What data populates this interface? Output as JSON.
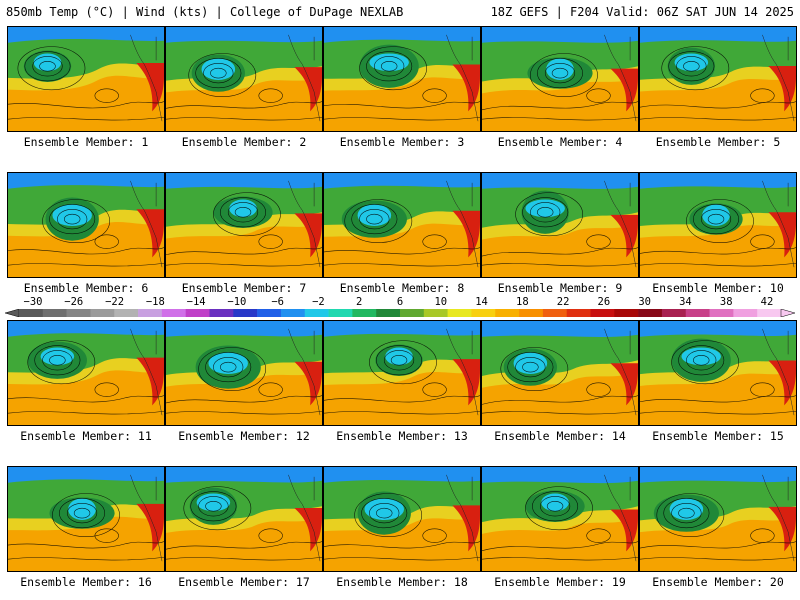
{
  "header": {
    "title": "850mb Temp (°C) | Wind (kts) | College of DuPage NEXLAB",
    "info": "18Z GEFS | F204 Valid: 06Z SAT JUN 14 2025"
  },
  "panels": [
    {
      "label": "Ensemble Member: 1"
    },
    {
      "label": "Ensemble Member: 2"
    },
    {
      "label": "Ensemble Member: 3"
    },
    {
      "label": "Ensemble Member: 4"
    },
    {
      "label": "Ensemble Member: 5"
    },
    {
      "label": "Ensemble Member: 6"
    },
    {
      "label": "Ensemble Member: 7"
    },
    {
      "label": "Ensemble Member: 8"
    },
    {
      "label": "Ensemble Member: 9"
    },
    {
      "label": "Ensemble Member: 10"
    },
    {
      "label": "Ensemble Member: 11"
    },
    {
      "label": "Ensemble Member: 12"
    },
    {
      "label": "Ensemble Member: 13"
    },
    {
      "label": "Ensemble Member: 14"
    },
    {
      "label": "Ensemble Member: 15"
    },
    {
      "label": "Ensemble Member: 16"
    },
    {
      "label": "Ensemble Member: 17"
    },
    {
      "label": "Ensemble Member: 18"
    },
    {
      "label": "Ensemble Member: 19"
    },
    {
      "label": "Ensemble Member: 20"
    }
  ],
  "colorbar": {
    "tick_labels": [
      "−30",
      "−26",
      "−22",
      "−18",
      "−14",
      "−10",
      "−6",
      "−2",
      "2",
      "6",
      "10",
      "14",
      "18",
      "22",
      "26",
      "30",
      "34",
      "38",
      "42"
    ],
    "colors": [
      "#5a5a5a",
      "#6f6f6f",
      "#858585",
      "#9b9b9b",
      "#b2b2b2",
      "#c8a0e0",
      "#d070e8",
      "#c040c8",
      "#6a30c0",
      "#2838c8",
      "#2060e8",
      "#2090f0",
      "#20c8e8",
      "#20d8b0",
      "#20b860",
      "#208838",
      "#60a830",
      "#a8c828",
      "#e8e820",
      "#f8d010",
      "#f8b000",
      "#f89000",
      "#f06010",
      "#e03010",
      "#c81010",
      "#a80808",
      "#880818",
      "#a82050",
      "#c84088",
      "#e070c0",
      "#f0a0e0",
      "#f8c8f0"
    ]
  },
  "map_colors": {
    "ocean_warm": "#f5a300",
    "mid": "#e8d020",
    "green": "#40a838",
    "dark_green": "#208838",
    "cyan": "#20c8e8",
    "blue": "#2090f0",
    "hot": "#d82010"
  }
}
